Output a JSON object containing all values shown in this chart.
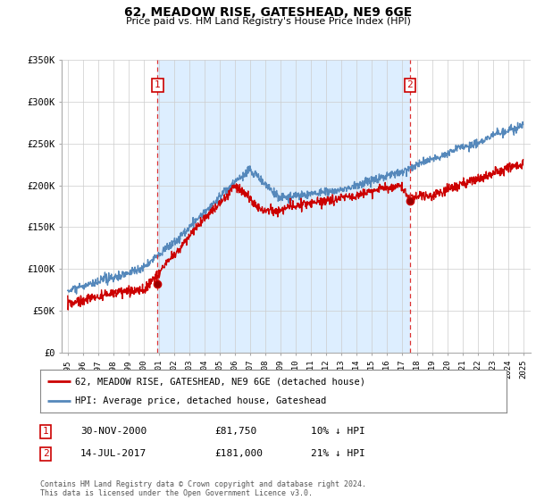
{
  "title": "62, MEADOW RISE, GATESHEAD, NE9 6GE",
  "subtitle": "Price paid vs. HM Land Registry's House Price Index (HPI)",
  "legend_label_red": "62, MEADOW RISE, GATESHEAD, NE9 6GE (detached house)",
  "legend_label_blue": "HPI: Average price, detached house, Gateshead",
  "footnote": "Contains HM Land Registry data © Crown copyright and database right 2024.\nThis data is licensed under the Open Government Licence v3.0.",
  "table_rows": [
    {
      "num": "1",
      "date": "30-NOV-2000",
      "price": "£81,750",
      "hpi": "10% ↓ HPI"
    },
    {
      "num": "2",
      "date": "14-JUL-2017",
      "price": "£181,000",
      "hpi": "21% ↓ HPI"
    }
  ],
  "marker1_x": 2000.92,
  "marker1_y": 81750,
  "marker2_x": 2017.54,
  "marker2_y": 181000,
  "vline1_x": 2000.92,
  "vline2_x": 2017.54,
  "ylim": [
    0,
    350000
  ],
  "yticks": [
    0,
    50000,
    100000,
    150000,
    200000,
    250000,
    300000,
    350000
  ],
  "ytick_labels": [
    "£0",
    "£50K",
    "£100K",
    "£150K",
    "£200K",
    "£250K",
    "£300K",
    "£350K"
  ],
  "red_color": "#cc0000",
  "blue_color": "#5588bb",
  "fill_color": "#ddeeff",
  "vline_color": "#dd3333",
  "background_color": "#ffffff",
  "grid_color": "#cccccc",
  "xlim_left": 1994.6,
  "xlim_right": 2025.5
}
